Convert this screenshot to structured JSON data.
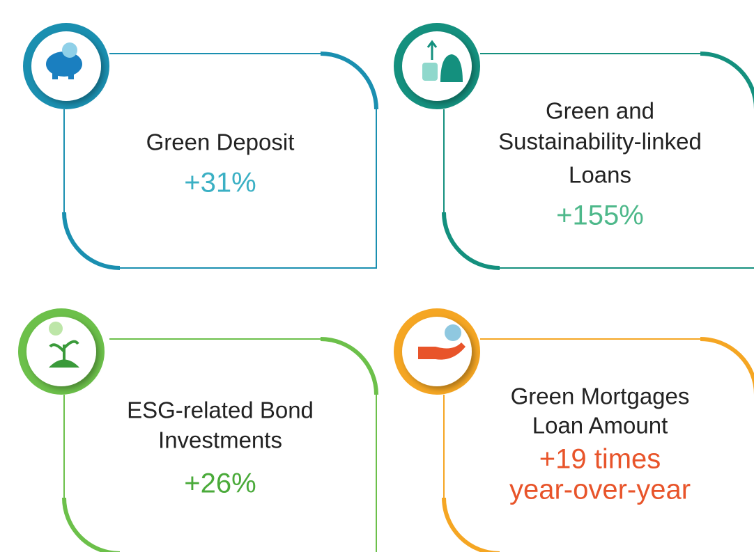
{
  "cards": [
    {
      "title": [
        "Green Deposit"
      ],
      "value": [
        "+31%"
      ]
    },
    {
      "title": [
        "Green and",
        "Sustainability-linked",
        "Loans"
      ],
      "value": [
        "+155%"
      ]
    },
    {
      "title": [
        "ESG-related Bond",
        "Investments"
      ],
      "value": [
        "+26%"
      ]
    },
    {
      "title": [
        "Green Mortgages",
        "Loan Amount"
      ],
      "value": [
        "+19 times",
        "year-over-year"
      ]
    }
  ]
}
